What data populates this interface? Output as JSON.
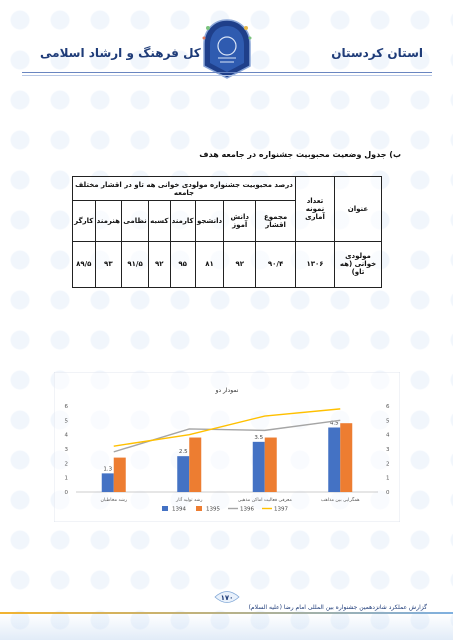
{
  "header": {
    "right_title": "استان کردستان",
    "left_title": "اداره کل فرهنگ و ارشاد اسلامی"
  },
  "section_title": "ب) جدول وضعیت محبوبیت جشنواره در جامعه هدف",
  "table": {
    "col_title": "عنوان",
    "col_sample": "تعداد نمونه آماری",
    "col_percent_group": "درصد محبوبیت جشنواره مولودی خوانی هه تاو در اقشار مختلف جامعه",
    "col_total": "مجموع اقشار",
    "groups": [
      "دانش آموز",
      "دانشجو",
      "کارمند",
      "کسبه",
      "نظامی",
      "هنرمند",
      "کارگر"
    ],
    "row": {
      "title": "مولودی خوانی (هه تاو)",
      "sample": "۱۳۰۶",
      "total": "۹۰/۴",
      "values": [
        "۹۲",
        "۸۱",
        "۹۵",
        "۹۲",
        "۹۱/۵",
        "۹۳",
        "۸۹/۵"
      ]
    }
  },
  "chart_data": {
    "type": "bar",
    "title": "نمودار دو",
    "categories": [
      "رشد مخاطبان",
      "رشد تولید آثار",
      "معرفی فعالیت اماکن مذهبی",
      "همگرایی بین مذاهب"
    ],
    "ylim": [
      0,
      6
    ],
    "yticks": [
      0,
      1,
      2,
      3,
      4,
      5,
      6
    ],
    "series": [
      {
        "name": "1394",
        "kind": "bar",
        "color": "#4472c4",
        "values": [
          1.3,
          2.5,
          3.5,
          4.5
        ]
      },
      {
        "name": "1395",
        "kind": "bar",
        "color": "#ed7d31",
        "values": [
          2.4,
          3.8,
          3.8,
          4.8
        ]
      },
      {
        "name": "1396",
        "kind": "line",
        "color": "#a5a5a5",
        "values": [
          2.8,
          4.4,
          4.3,
          5.0
        ]
      },
      {
        "name": "1397",
        "kind": "line",
        "color": "#ffc000",
        "values": [
          3.2,
          4.0,
          5.3,
          5.8
        ]
      }
    ],
    "data_labels": [
      "1.3",
      "2.5",
      "3.5",
      "4.5"
    ],
    "legend_position": "bottom",
    "grid": false
  },
  "footer": {
    "page_number": "۱۷۰",
    "text": "گزارش عملکرد شانزدهمین جشنواره بین المللی امام رضا (علیه السلام)"
  }
}
